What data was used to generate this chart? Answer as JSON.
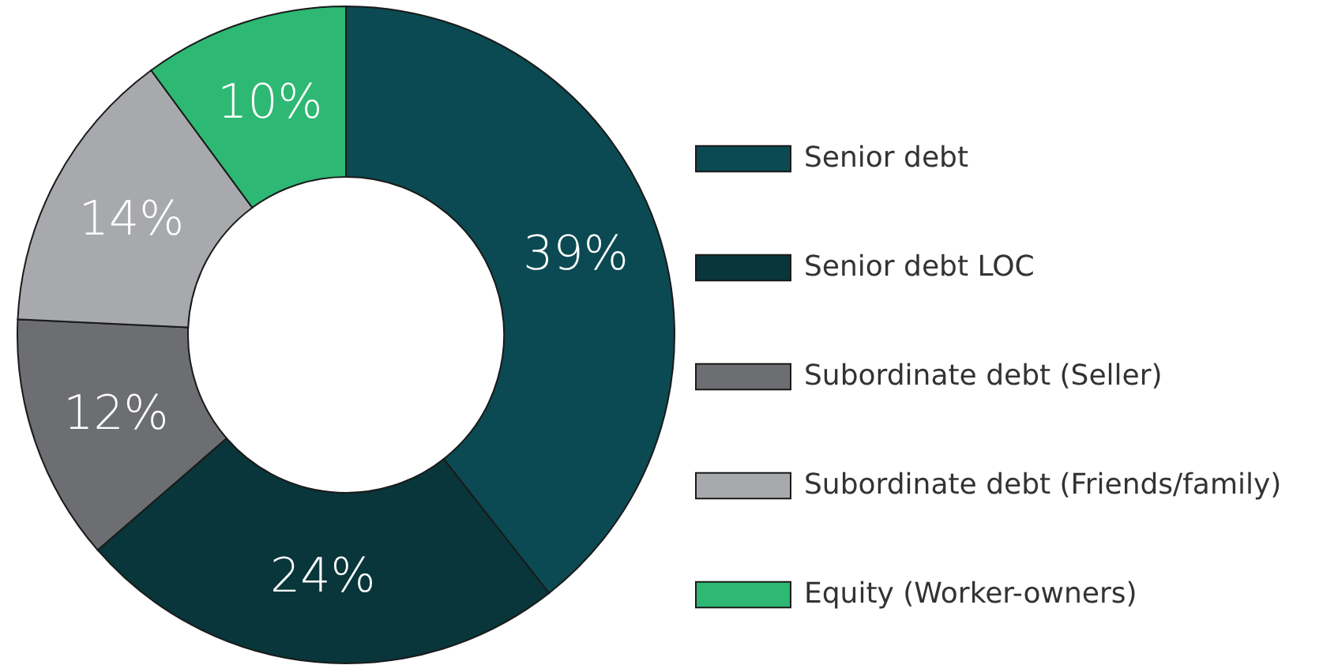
{
  "chart_data": {
    "type": "donut",
    "categories": [
      "Senior debt",
      "Senior debt LOC",
      "Subordinate debt (Seller)",
      "Subordinate debt (Friends/family)",
      "Equity (Worker-owners)"
    ],
    "values": [
      39,
      24,
      12,
      14,
      10
    ],
    "colors": [
      "#0b4a52",
      "#08363a",
      "#6d6e71",
      "#a7a9ac",
      "#2db873"
    ],
    "value_labels": [
      "39%",
      "24%",
      "12%",
      "14%",
      "10%"
    ],
    "legend": "right"
  }
}
